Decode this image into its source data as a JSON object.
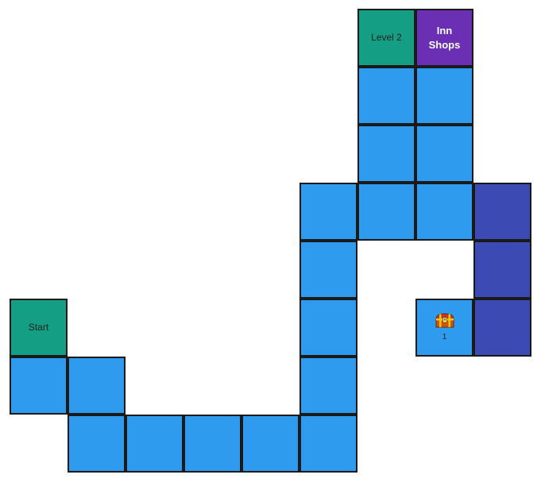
{
  "map": {
    "tiles": [
      {
        "col": 6,
        "row": 0,
        "kind": "landmark",
        "label": "Level 2"
      },
      {
        "col": 7,
        "row": 0,
        "kind": "town",
        "label": "Inn\nShops"
      },
      {
        "col": 6,
        "row": 1,
        "kind": "path"
      },
      {
        "col": 7,
        "row": 1,
        "kind": "path"
      },
      {
        "col": 6,
        "row": 2,
        "kind": "path"
      },
      {
        "col": 7,
        "row": 2,
        "kind": "path"
      },
      {
        "col": 5,
        "row": 3,
        "kind": "path"
      },
      {
        "col": 6,
        "row": 3,
        "kind": "path"
      },
      {
        "col": 7,
        "row": 3,
        "kind": "path"
      },
      {
        "col": 8,
        "row": 3,
        "kind": "dark"
      },
      {
        "col": 5,
        "row": 4,
        "kind": "path"
      },
      {
        "col": 8,
        "row": 4,
        "kind": "dark"
      },
      {
        "col": 0,
        "row": 5,
        "kind": "landmark",
        "label": "Start"
      },
      {
        "col": 5,
        "row": 5,
        "kind": "path"
      },
      {
        "col": 7,
        "row": 5,
        "kind": "chest",
        "chest_number": "1"
      },
      {
        "col": 8,
        "row": 5,
        "kind": "dark"
      },
      {
        "col": 0,
        "row": 6,
        "kind": "path"
      },
      {
        "col": 1,
        "row": 6,
        "kind": "path"
      },
      {
        "col": 5,
        "row": 6,
        "kind": "path"
      },
      {
        "col": 1,
        "row": 7,
        "kind": "path"
      },
      {
        "col": 2,
        "row": 7,
        "kind": "path"
      },
      {
        "col": 3,
        "row": 7,
        "kind": "path"
      },
      {
        "col": 4,
        "row": 7,
        "kind": "path"
      },
      {
        "col": 5,
        "row": 7,
        "kind": "path"
      }
    ]
  },
  "colors": {
    "path": "#2e9bef",
    "landmark": "#149e84",
    "town": "#6a2fb3",
    "dark": "#3c4bb4",
    "border": "#1a1a1a"
  },
  "icons": {
    "chest": "treasure-chest-icon"
  }
}
